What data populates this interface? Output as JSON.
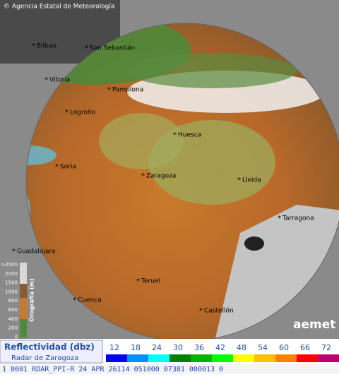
{
  "header": {
    "copyright": "© Agencia Estatal de Meteorología"
  },
  "cities": [
    "Bilbao",
    "San Sebastián",
    "Vitoria",
    "Pamplona",
    "Logroño",
    "Huesca",
    "Soria",
    "Zaragoza",
    "Lleida",
    "Tarragona",
    "Guadalajara",
    "Teruel",
    "Cuenca",
    "Castellón"
  ],
  "orography": {
    "title": "Orografía (m)",
    "labels": [
      ">2500",
      "2000",
      "1500",
      "1000",
      "800",
      "600",
      "400",
      "200",
      "0"
    ]
  },
  "legend": {
    "title": "Reflectividad (dbz)",
    "radar": "Radar de Zaragoza",
    "levels": [
      {
        "value": 12,
        "color": "#0000f0"
      },
      {
        "value": 18,
        "color": "#0090ff"
      },
      {
        "value": 24,
        "color": "#00ffff"
      },
      {
        "value": 30,
        "color": "#008000"
      },
      {
        "value": 36,
        "color": "#00b400"
      },
      {
        "value": 42,
        "color": "#00ff00"
      },
      {
        "value": 48,
        "color": "#ffff00"
      },
      {
        "value": 54,
        "color": "#ffc000"
      },
      {
        "value": 60,
        "color": "#ff8000"
      },
      {
        "value": 66,
        "color": "#ff0000"
      },
      {
        "value": 72,
        "color": "#c0006a"
      }
    ]
  },
  "footer": "1 0001 RDAR_PPI-R  24 APR 26114 051000 07381 000013 0",
  "logo": "aemet"
}
